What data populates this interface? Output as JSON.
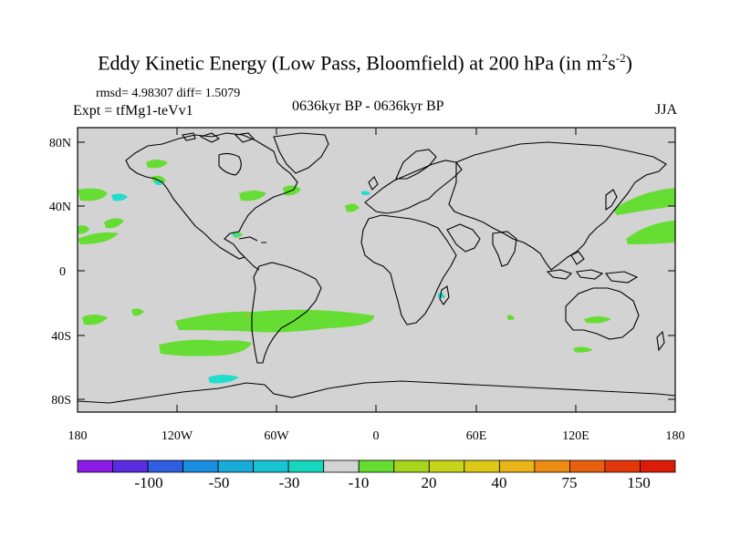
{
  "header": {
    "title_main": "Eddy Kinetic Energy (Low Pass, Bloomfield) at 200 hPa (in m",
    "title_exp1": "2",
    "title_mid": "s",
    "title_exp2": "-2",
    "title_end": ")",
    "stats": "rmsd= 4.98307 diff= 1.5079",
    "expt": "Expt = tfMg1-teVv1",
    "period": "0636kyr BP - 0636kyr BP",
    "season": "JJA"
  },
  "map": {
    "lat_labels": [
      "80N",
      "40N",
      "0",
      "40S",
      "80S"
    ],
    "lon_labels": [
      "180",
      "120W",
      "60W",
      "0",
      "60E",
      "120E",
      "180"
    ],
    "colors": {
      "land_ocean": "#d3d3d3",
      "coastline": "#000000",
      "positive_10_20": "#66dd33",
      "negative_10_30": "#22ddcc",
      "small_orange": "#e8a020"
    }
  },
  "colorbar": {
    "colors": [
      "#8c1be6",
      "#5a2be0",
      "#2f5fe0",
      "#1a8ee0",
      "#18acd8",
      "#18c4d4",
      "#16d8c0",
      "#d3d3d3",
      "#66dd33",
      "#a6d61c",
      "#c8d41a",
      "#ddc818",
      "#e8b416",
      "#ec8c12",
      "#e8600e",
      "#e4380c",
      "#dd1c08"
    ],
    "labels": [
      "-100",
      "-50",
      "-30",
      "-10",
      "20",
      "40",
      "75",
      "150"
    ]
  }
}
